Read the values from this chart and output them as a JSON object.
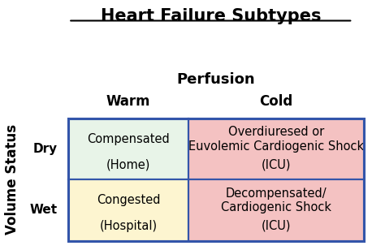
{
  "title": "Heart Failure Subtypes",
  "col_header": "Perfusion",
  "row_header": "Volume Status",
  "col_labels": [
    "Warm",
    "Cold"
  ],
  "row_labels": [
    "Dry",
    "Wet"
  ],
  "cells": [
    {
      "row": 0,
      "col": 0,
      "line1": "Compensated",
      "line2": "(Home)",
      "bg": "#e8f4e8"
    },
    {
      "row": 0,
      "col": 1,
      "line1": "Overdiuresed or\nEuvolemic Cardiogenic Shock",
      "line2": "(ICU)",
      "bg": "#f4c2c2"
    },
    {
      "row": 1,
      "col": 0,
      "line1": "Congested",
      "line2": "(Hospital)",
      "bg": "#fdf5d0"
    },
    {
      "row": 1,
      "col": 1,
      "line1": "Decompensated/\nCardiogenic Shock",
      "line2": "(ICU)",
      "bg": "#f4c2c2"
    }
  ],
  "border_color": "#3355aa",
  "background_color": "#ffffff",
  "title_fontsize": 15,
  "header_fontsize": 12,
  "cell_fontsize": 10.5,
  "row_label_fontsize": 11
}
